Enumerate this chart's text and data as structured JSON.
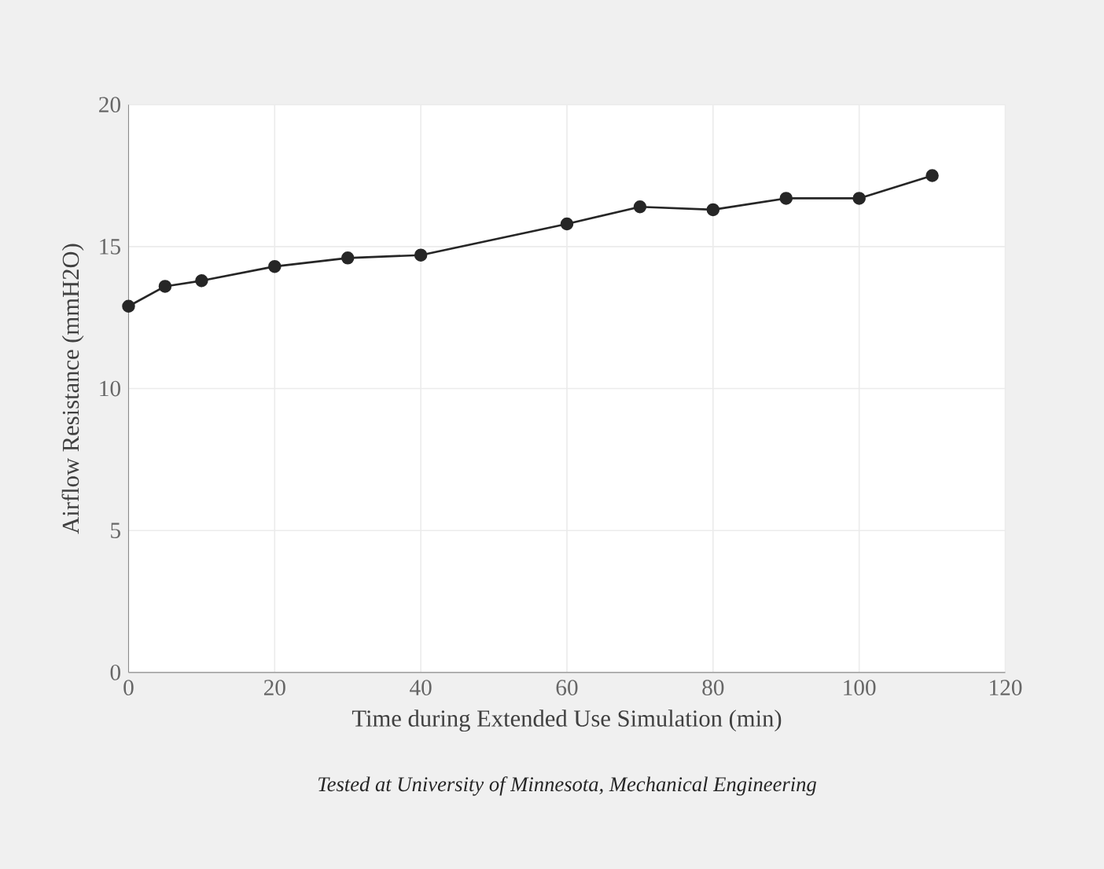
{
  "chart_data": {
    "type": "line",
    "xlabel": "Time during Extended Use Simulation (min)",
    "ylabel": "Airflow Resistance (mmH2O)",
    "x": [
      0,
      5,
      10,
      20,
      30,
      40,
      60,
      70,
      80,
      90,
      100,
      110
    ],
    "series": [
      {
        "color": "#262626",
        "values": [
          12.9,
          13.6,
          13.8,
          14.3,
          14.6,
          14.7,
          15.8,
          16.4,
          16.3,
          16.7,
          16.7,
          17.5
        ]
      }
    ],
    "xlim": [
      0,
      120
    ],
    "xticks": [
      0,
      20,
      40,
      60,
      80,
      100,
      120
    ],
    "ylim": [
      0,
      20
    ],
    "yticks": [
      0,
      5,
      10,
      15,
      20
    ],
    "grid": true,
    "marker": "circle",
    "line_style": "solid",
    "annotations": [
      "Tested at University of Minnesota, Mechanical Engineering"
    ]
  }
}
